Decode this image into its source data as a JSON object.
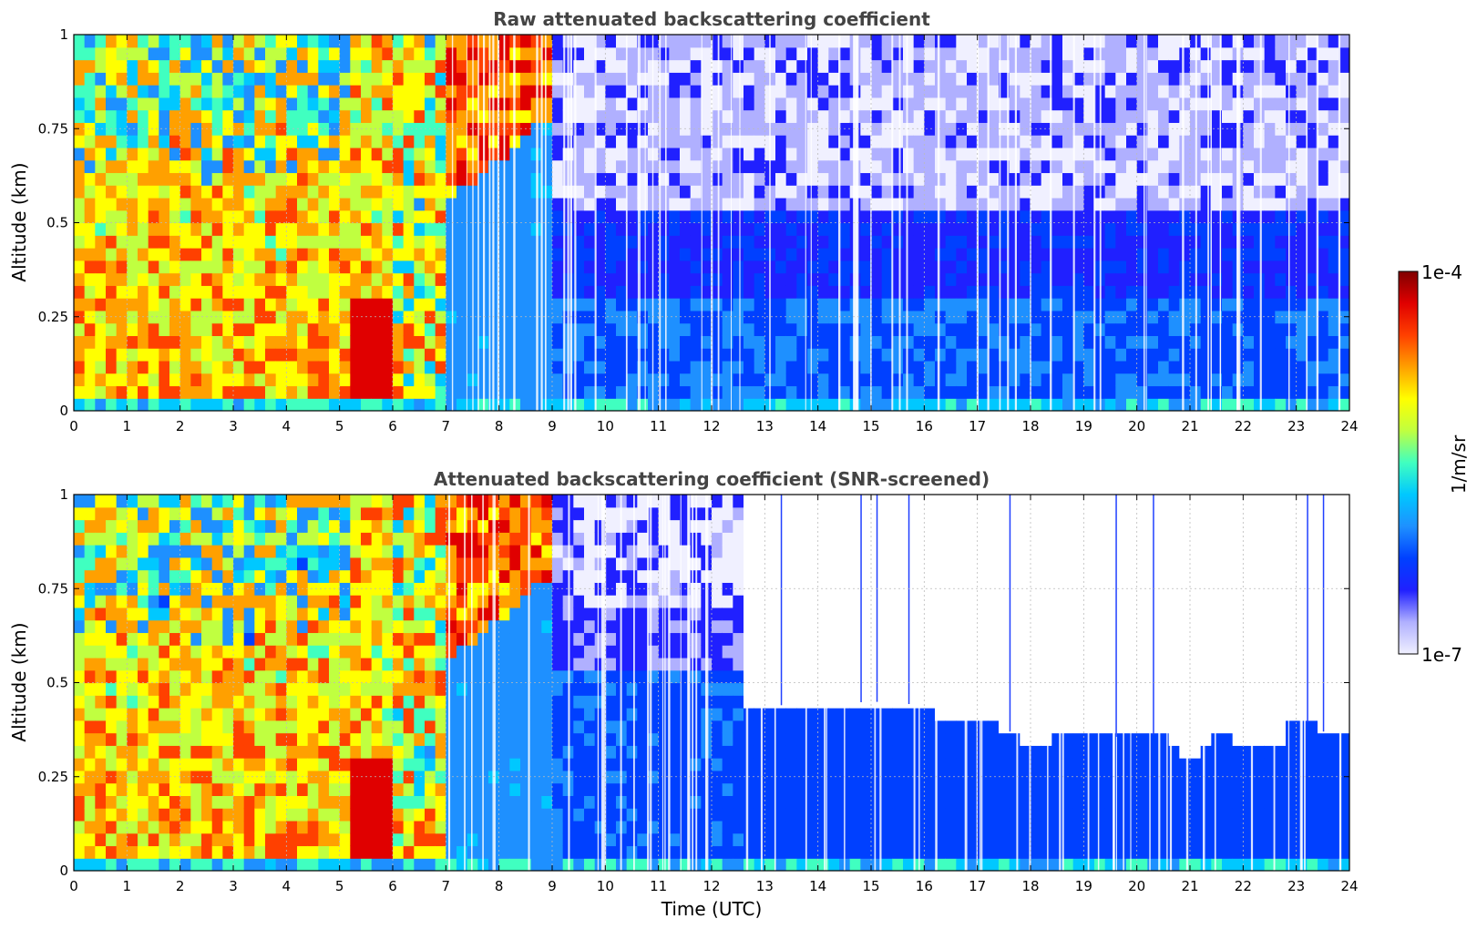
{
  "chart_data": [
    {
      "type": "heatmap",
      "title": "Raw attenuated backscattering coefficient",
      "xlabel": "",
      "ylabel": "Altitude (km)",
      "xlim": [
        0,
        24
      ],
      "ylim": [
        0,
        1
      ],
      "x_ticks": [
        "0",
        "1",
        "2",
        "3",
        "4",
        "5",
        "6",
        "7",
        "8",
        "9",
        "10",
        "11",
        "12",
        "13",
        "14",
        "15",
        "16",
        "17",
        "18",
        "19",
        "20",
        "21",
        "22",
        "23",
        "24"
      ],
      "y_ticks": [
        "0",
        "0.25",
        "0.5",
        "0.75",
        "1"
      ],
      "grid": true,
      "variant": "raw",
      "regions": [
        {
          "x": [
            0,
            5.2
          ],
          "y": [
            0,
            1
          ],
          "level": "high (~1e-5 to 1e-4)"
        },
        {
          "x": [
            5.2,
            6.0
          ],
          "y": [
            0,
            0.3
          ],
          "level": "highest (~1e-4)"
        },
        {
          "x": [
            7.0,
            9.1
          ],
          "y": [
            0,
            0.6
          ],
          "level": "moderate (~1e-6)"
        },
        {
          "x": [
            9.1,
            24
          ],
          "y": [
            0,
            0.5
          ],
          "level": "low (~1e-6)"
        },
        {
          "x": [
            9.1,
            24
          ],
          "y": [
            0.5,
            1
          ],
          "level": "noise (~1e-7)"
        }
      ]
    },
    {
      "type": "heatmap",
      "title": "Attenuated backscattering coefficient (SNR-screened)",
      "xlabel": "Time (UTC)",
      "ylabel": "Altitude (km)",
      "xlim": [
        0,
        24
      ],
      "ylim": [
        0,
        1
      ],
      "x_ticks": [
        "0",
        "1",
        "2",
        "3",
        "4",
        "5",
        "6",
        "7",
        "8",
        "9",
        "10",
        "11",
        "12",
        "13",
        "14",
        "15",
        "16",
        "17",
        "18",
        "19",
        "20",
        "21",
        "22",
        "23",
        "24"
      ],
      "y_ticks": [
        "0",
        "0.25",
        "0.5",
        "0.75",
        "1"
      ],
      "grid": true,
      "variant": "screened",
      "cutoff": {
        "x": [
          12.7,
          14,
          15,
          16,
          16.3,
          17,
          17.6,
          18,
          18.5,
          19,
          19.5,
          20,
          20.5,
          21,
          21.5,
          22,
          22.7,
          23,
          23.5,
          24
        ],
        "y": [
          0.44,
          0.44,
          0.45,
          0.44,
          0.41,
          0.4,
          0.37,
          0.33,
          0.35,
          0.35,
          0.35,
          0.38,
          0.35,
          0.29,
          0.37,
          0.33,
          0.33,
          0.41,
          0.37,
          0.36
        ]
      }
    }
  ],
  "colorbar": {
    "label": "1/m/sr",
    "max_label": "1e-4",
    "min_label": "1e-7",
    "scale": "log",
    "colors": [
      "#f0f0ff",
      "#b0b0ff",
      "#2020ff",
      "#0040ff",
      "#1e90ff",
      "#00c8ff",
      "#40ffc0",
      "#c0ff40",
      "#ffff00",
      "#ffa000",
      "#ff4000",
      "#e00000",
      "#800000"
    ]
  },
  "colors": {
    "title": "#444444",
    "grid": "#bbbbbb"
  }
}
